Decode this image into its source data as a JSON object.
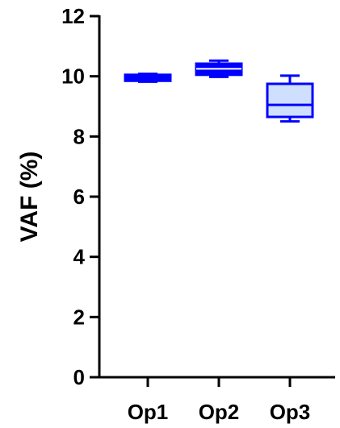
{
  "chart_data": {
    "type": "box",
    "title": "",
    "xlabel": "",
    "ylabel": "VAF (%)",
    "ylim": [
      0,
      12
    ],
    "yticks": [
      "0",
      "2",
      "4",
      "6",
      "8",
      "10",
      "12"
    ],
    "categories": [
      "Op1",
      "Op2",
      "Op3"
    ],
    "boxes": [
      {
        "category": "Op1",
        "min": 9.82,
        "q1": 9.85,
        "median": 9.95,
        "q3": 10.05,
        "max": 10.08
      },
      {
        "category": "Op2",
        "min": 9.98,
        "q1": 10.05,
        "median": 10.25,
        "q3": 10.42,
        "max": 10.52
      },
      {
        "category": "Op3",
        "min": 8.5,
        "q1": 8.65,
        "median": 9.05,
        "q3": 9.75,
        "max": 10.02
      }
    ],
    "grid": false,
    "legend": "none",
    "colors": {
      "stroke": "#0000ff",
      "box_fill_op1": "#0000ff",
      "box_fill_op2": "#0000ff",
      "box_fill_op3": "#cfe0ff",
      "axis": "#000000"
    }
  }
}
